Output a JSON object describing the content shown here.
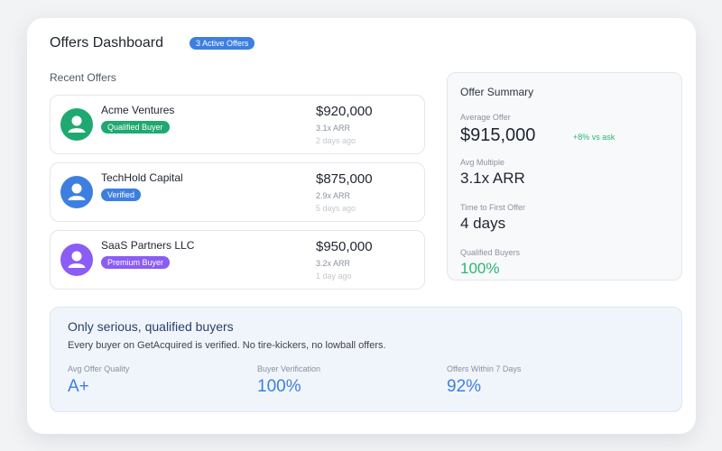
{
  "header": {
    "title": "Offers Dashboard",
    "badge": "3 Active Offers"
  },
  "recent": {
    "label": "Recent Offers",
    "offers": [
      {
        "name": "Acme Ventures",
        "badge": "Qualified Buyer",
        "badge_color": "#1fa971",
        "avatar_color": "#1fa971",
        "amount": "$920,000",
        "multiple": "3.1x ARR",
        "when": "2 days ago"
      },
      {
        "name": "TechHold Capital",
        "badge": "Verified",
        "badge_color": "#3d7fe0",
        "avatar_color": "#3d7fe0",
        "amount": "$875,000",
        "multiple": "2.9x ARR",
        "when": "5 days ago"
      },
      {
        "name": "SaaS Partners LLC",
        "badge": "Premium Buyer",
        "badge_color": "#8b5cf6",
        "avatar_color": "#8b5cf6",
        "amount": "$950,000",
        "multiple": "3.2x ARR",
        "when": "1 day ago"
      }
    ]
  },
  "summary": {
    "title": "Offer Summary",
    "average_label": "Average Offer",
    "average_value": "$915,000",
    "average_delta": "+8% vs ask",
    "multiple_label": "Avg Multiple",
    "multiple_value": "3.1x ARR",
    "time_label": "Time to First Offer",
    "time_value": "4 days",
    "qualified_label": "Qualified Buyers",
    "qualified_value": "100%"
  },
  "promo": {
    "title": "Only serious, qualified buyers",
    "text": "Every buyer on GetAcquired is verified. No tire-kickers, no lowball offers.",
    "stats": [
      {
        "label": "Avg Offer Quality",
        "value": "A+"
      },
      {
        "label": "Buyer Verification",
        "value": "100%"
      },
      {
        "label": "Offers Within 7 Days",
        "value": "92%"
      }
    ]
  },
  "colors": {
    "accent": "#3d7fe0",
    "positive": "#2bb673"
  }
}
